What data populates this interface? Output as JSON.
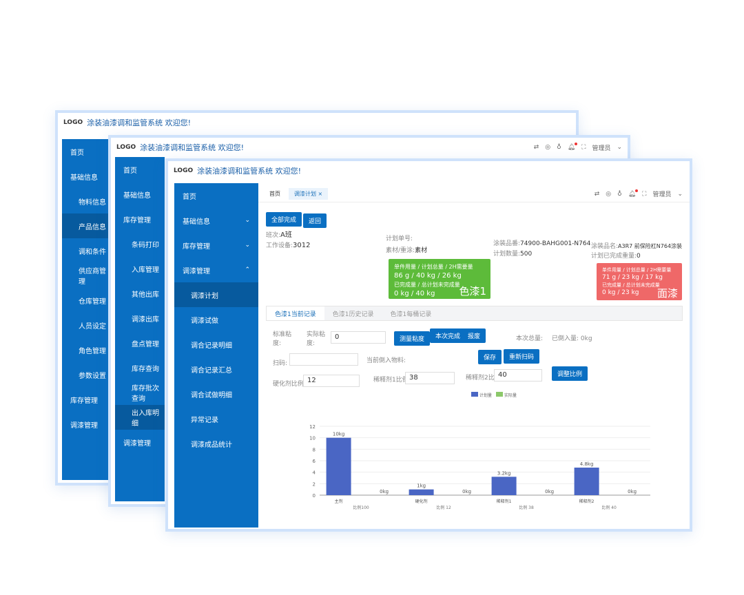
{
  "app": {
    "logo": "LOGO",
    "title": "涂装油漆调和监管系统 欢迎您!",
    "user": "管理员"
  },
  "colors": {
    "primary": "#0a6fc2",
    "green": "#5dbb3a",
    "red": "#ef6868",
    "plan": "#4a66c4",
    "actual": "#8cc86a"
  },
  "win1": {
    "menu": [
      "首页",
      "基础信息",
      "物料信息",
      "产品信息",
      "调和条件",
      "供应商管理",
      "仓库管理",
      "人员设定",
      "角色管理",
      "参数设置",
      "库存管理",
      "调漆管理"
    ]
  },
  "win2": {
    "menu": [
      "首页",
      "基础信息",
      "库存管理",
      "条码打印",
      "入库管理",
      "其他出库",
      "调漆出库",
      "盘点管理",
      "库存查询",
      "库存批次查询",
      "出入库明细",
      "调漆管理"
    ]
  },
  "win3": {
    "menu": [
      "首页",
      "基础信息",
      "库存管理",
      "调漆管理",
      "调漆计划",
      "调漆试做",
      "调合记录明细",
      "调合记录汇总",
      "调合试做明细",
      "异常记录",
      "调漆成品统计"
    ],
    "tabs": [
      "首页",
      "调漆计划"
    ],
    "buttons": {
      "all_done": "全部完成",
      "back": "返回",
      "measure": "测量粘度",
      "done": "本次完成",
      "scrap": "报废",
      "save": "保存",
      "reweigh": "重新扫码",
      "adjust": "调整比例"
    },
    "info": {
      "shift_l": "班次:",
      "shift": "A班",
      "device_l": "工作设备:",
      "device": "3012",
      "plan_no_l": "计划单号:",
      "plan_no": "",
      "mat_l": "素材/重涂:",
      "mat": "素材",
      "part_l": "涂装品番:",
      "part": "74900-BAHG001-N764",
      "qty_l": "计划数量:",
      "qty": "500",
      "pname_l": "涂装品名:",
      "pname": "A3R7 前保险杠N764涂装",
      "done_l": "计划已完成重量:",
      "done": "0"
    },
    "cards": [
      {
        "h1": "单件用量 / 计划总量 / 2H需要量",
        "v1": "86 g / 40  kg / 26 kg",
        "h2": "已完成量 / 总计划未完成量",
        "v2": "0 kg / 40  kg",
        "name": "色漆1"
      },
      {
        "h1": "单件用量 / 计划总量 / 2H需要量",
        "v1": "71 g / 23  kg / 17 kg",
        "h2": "已完成量 / 总计划未完成量",
        "v2": "0 kg / 23  kg",
        "name": "面漆"
      }
    ],
    "subtabs": [
      "色漆1当前记录",
      "色漆1历史记录",
      "色漆1每桶记录"
    ],
    "form": {
      "std_visc": "标准粘度:",
      "act_visc": "实际粘度:",
      "act_visc_val": "0",
      "total": "本次总量:",
      "added": "已倒入量: 0kg",
      "scan": "扫码:",
      "scan_val": "",
      "current": "当前倒入物料:",
      "hard": "硬化剂比例",
      "hard_val": "12",
      "thin1": "稀释剂1比例",
      "thin1_val": "38",
      "thin2": "稀释剂2比例",
      "thin2_val": "40"
    }
  },
  "chart_data": {
    "type": "bar",
    "categories": [
      "主剂",
      "硬化剂",
      "稀释剂1",
      "稀释剂2"
    ],
    "ratio_labels": [
      "比例100",
      "比例 12",
      "比例 38",
      "比例 40"
    ],
    "series": [
      {
        "name": "计划量",
        "values": [
          10,
          1,
          3.2,
          4.8
        ],
        "labels": [
          "10kg",
          "1kg",
          "3.2kg",
          "4.8kg"
        ]
      },
      {
        "name": "实际量",
        "values": [
          0,
          0,
          0,
          0
        ],
        "labels": [
          "0kg",
          "0kg",
          "0kg",
          "0kg"
        ]
      }
    ],
    "ylim": [
      0,
      12
    ],
    "yticks": [
      0,
      2,
      4,
      6,
      8,
      10,
      12
    ],
    "grid": true,
    "legend": "top"
  }
}
